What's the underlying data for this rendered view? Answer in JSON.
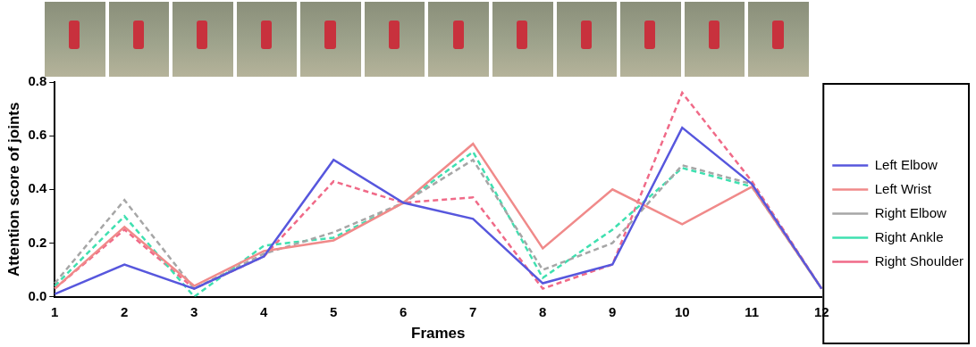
{
  "chart_data": {
    "type": "line",
    "x_label": "Frames",
    "y_label": "Attention score of joints",
    "categories": [
      "1",
      "2",
      "3",
      "4",
      "5",
      "6",
      "7",
      "8",
      "9",
      "10",
      "11",
      "12"
    ],
    "series": [
      {
        "name": "Left Elbow",
        "color": "#5757dd",
        "line_style": "solid",
        "values": [
          0.01,
          0.12,
          0.03,
          0.15,
          0.51,
          0.35,
          0.29,
          0.05,
          0.12,
          0.63,
          0.42,
          0.03
        ]
      },
      {
        "name": "Left Wrist",
        "color": "#f08a8a",
        "line_style": "solid",
        "values": [
          0.03,
          0.26,
          0.04,
          0.17,
          0.21,
          0.35,
          0.57,
          0.18,
          0.4,
          0.27,
          0.41,
          0.03
        ]
      },
      {
        "name": "Right Elbow",
        "color": "#a6a6a6",
        "line_style": "dashed",
        "values": [
          0.05,
          0.36,
          0.03,
          0.16,
          0.24,
          0.35,
          0.51,
          0.1,
          0.2,
          0.49,
          0.42,
          0.03
        ]
      },
      {
        "name": "Right Ankle",
        "color": "#3fe0b0",
        "line_style": "dashed",
        "values": [
          0.04,
          0.3,
          0.0,
          0.19,
          0.22,
          0.35,
          0.54,
          0.07,
          0.25,
          0.48,
          0.41,
          0.03
        ]
      },
      {
        "name": "Right Shoulder",
        "color": "#f06a88",
        "line_style": "dashed",
        "values": [
          0.03,
          0.25,
          0.03,
          0.15,
          0.43,
          0.35,
          0.37,
          0.03,
          0.12,
          0.76,
          0.43,
          0.03
        ]
      }
    ],
    "ylim": [
      0,
      0.8
    ],
    "yticks": [
      {
        "value": 0,
        "label": "0.0"
      },
      0.2,
      0.4,
      0.6,
      0.8
    ],
    "grid": false,
    "legend": "right"
  }
}
